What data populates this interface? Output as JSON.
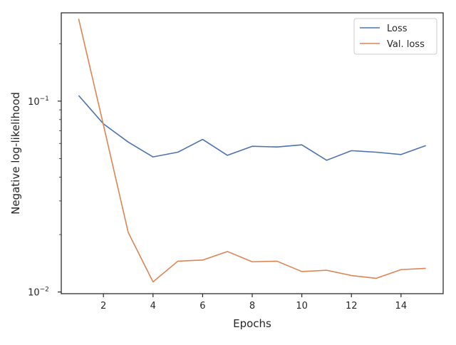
{
  "chart_data": {
    "type": "line",
    "xlabel": "Epochs",
    "ylabel": "Negative log-likelihood",
    "yscale": "log",
    "xlim": [
      0.3,
      15.7
    ],
    "ylim": [
      0.0098,
      0.29
    ],
    "xticks": [
      2,
      4,
      6,
      8,
      10,
      12,
      14
    ],
    "yticks": [
      {
        "value": 0.01,
        "base": "10",
        "exp": "−2"
      },
      {
        "value": 0.1,
        "base": "10",
        "exp": "−1"
      }
    ],
    "legend_position": "top-right",
    "grid": false,
    "x": [
      1,
      2,
      3,
      4,
      5,
      6,
      7,
      8,
      9,
      10,
      11,
      12,
      13,
      14,
      15
    ],
    "series": [
      {
        "name": "Loss",
        "color": "#4c72b0",
        "values": [
          0.107,
          0.076,
          0.061,
          0.051,
          0.054,
          0.063,
          0.052,
          0.058,
          0.0575,
          0.059,
          0.049,
          0.055,
          0.054,
          0.0525,
          0.0585
        ]
      },
      {
        "name": "Val. loss",
        "color": "#dd8452",
        "values": [
          0.27,
          0.075,
          0.0205,
          0.0113,
          0.0145,
          0.0147,
          0.0163,
          0.0144,
          0.0145,
          0.0128,
          0.013,
          0.0122,
          0.0118,
          0.0131,
          0.0133
        ]
      }
    ]
  }
}
